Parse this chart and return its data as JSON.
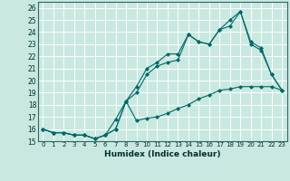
{
  "xlabel": "Humidex (Indice chaleur)",
  "bg_color": "#c8e8e0",
  "grid_color": "#ffffff",
  "line_color": "#006868",
  "xlim": [
    -0.5,
    23.5
  ],
  "ylim": [
    15,
    26.5
  ],
  "xticks": [
    0,
    1,
    2,
    3,
    4,
    5,
    6,
    7,
    8,
    9,
    10,
    11,
    12,
    13,
    14,
    15,
    16,
    17,
    18,
    19,
    20,
    21,
    22,
    23
  ],
  "yticks": [
    15,
    16,
    17,
    18,
    19,
    20,
    21,
    22,
    23,
    24,
    25,
    26
  ],
  "series1_x": [
    0,
    1,
    2,
    3,
    4,
    5,
    6,
    7,
    8,
    9,
    10,
    11,
    12,
    13,
    14,
    15,
    16,
    17,
    18,
    19,
    20,
    21,
    22,
    23
  ],
  "series1_y": [
    16.0,
    15.7,
    15.7,
    15.5,
    15.5,
    15.2,
    15.5,
    16.0,
    18.3,
    16.7,
    16.9,
    17.0,
    17.3,
    17.7,
    18.0,
    18.5,
    18.8,
    19.2,
    19.3,
    19.5,
    19.5,
    19.5,
    19.5,
    19.2
  ],
  "series2_x": [
    0,
    1,
    2,
    3,
    4,
    5,
    6,
    7,
    8,
    9,
    10,
    11,
    12,
    13,
    14,
    15,
    16,
    17,
    18,
    19,
    20,
    21,
    22,
    23
  ],
  "series2_y": [
    16.0,
    15.7,
    15.7,
    15.5,
    15.5,
    15.2,
    15.5,
    16.0,
    18.3,
    19.0,
    20.5,
    21.2,
    21.5,
    21.7,
    23.8,
    23.2,
    23.0,
    24.2,
    25.0,
    25.7,
    23.2,
    22.7,
    20.5,
    19.2
  ],
  "series3_x": [
    0,
    1,
    2,
    3,
    4,
    5,
    6,
    7,
    8,
    9,
    10,
    11,
    12,
    13,
    14,
    15,
    16,
    17,
    18,
    19,
    20,
    21,
    22,
    23
  ],
  "series3_y": [
    16.0,
    15.7,
    15.7,
    15.5,
    15.5,
    15.2,
    15.5,
    16.8,
    18.3,
    19.5,
    21.0,
    21.5,
    22.2,
    22.2,
    23.8,
    23.2,
    23.0,
    24.2,
    24.5,
    25.7,
    23.0,
    22.5,
    20.5,
    19.2
  ],
  "xtick_fontsize": 5.0,
  "ytick_fontsize": 5.5,
  "xlabel_fontsize": 6.5
}
